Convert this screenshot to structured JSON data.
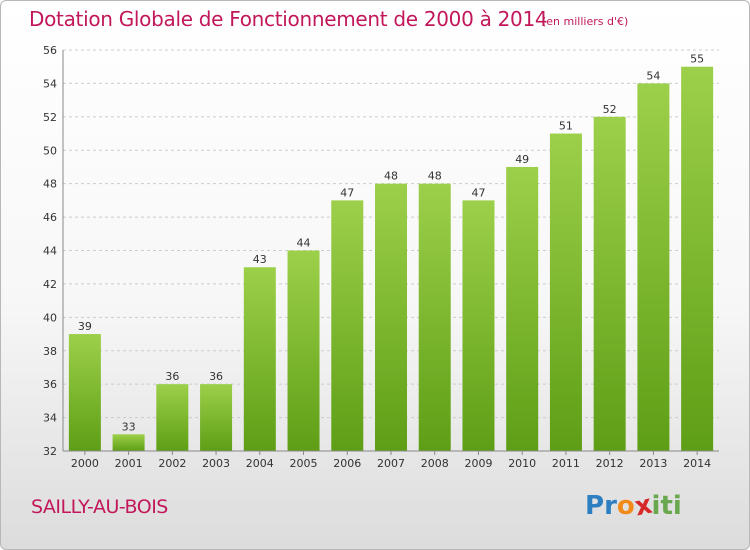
{
  "chart_data": {
    "type": "bar",
    "title": "Dotation Globale de Fonctionnement de 2000 à 2014",
    "subtitle": "(en milliers d'€)",
    "categories": [
      "2000",
      "2001",
      "2002",
      "2003",
      "2004",
      "2005",
      "2006",
      "2007",
      "2008",
      "2009",
      "2010",
      "2011",
      "2012",
      "2013",
      "2014"
    ],
    "values": [
      39,
      33,
      36,
      36,
      43,
      44,
      47,
      48,
      48,
      47,
      49,
      51,
      52,
      54,
      55
    ],
    "xlabel": "",
    "ylabel": "",
    "ylim": [
      32,
      56
    ],
    "yticks": [
      32,
      34,
      36,
      38,
      40,
      42,
      44,
      46,
      48,
      50,
      52,
      54,
      56
    ],
    "grid": true,
    "legend": "none",
    "bar_color_top": "#9dd04a",
    "bar_color_bottom": "#5e9e16"
  },
  "footer": {
    "town": "SAILLY-AU-BOIS",
    "logo_letters": [
      "P",
      "r",
      "o",
      "x",
      "i",
      "t",
      "i"
    ],
    "logo_colors": [
      "#2e7fc1",
      "#2e7fc1",
      "#f28a1a",
      "#d62828",
      "#6aa84f",
      "#6aa84f",
      "#6aa84f"
    ]
  },
  "colors": {
    "title": "#c2185b",
    "grid": "#cccccc",
    "axis": "#888888"
  }
}
